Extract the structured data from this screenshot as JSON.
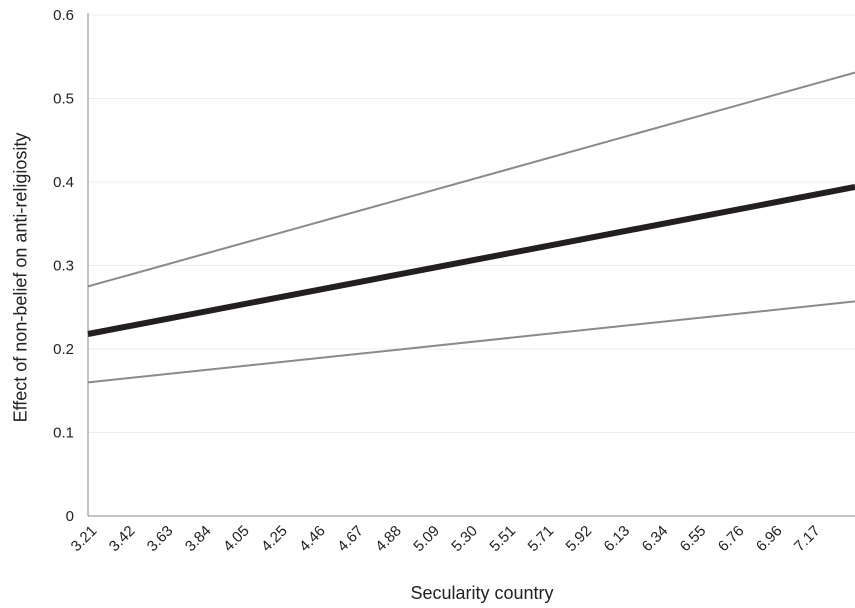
{
  "chart_data": {
    "type": "line",
    "title": "",
    "xlabel": "Secularity country",
    "ylabel": "Effect of non-belief on anti-religiosity",
    "categories": [
      "3.21",
      "3.42",
      "3.63",
      "3.84",
      "4.05",
      "4.25",
      "4.46",
      "4.67",
      "4.88",
      "5.09",
      "5.30",
      "5.51",
      "5.71",
      "5.92",
      "6.13",
      "6.34",
      "6.55",
      "6.76",
      "6.96",
      "7.17"
    ],
    "x_range": [
      3.21,
      7.38
    ],
    "ylim": [
      0,
      0.6
    ],
    "y_ticks": [
      0,
      0.1,
      0.2,
      0.3,
      0.4,
      0.5,
      0.6
    ],
    "y_tick_labels": [
      "0",
      "0.1",
      "0.2",
      "0.3",
      "0.4",
      "0.5",
      "0.6"
    ],
    "grid": true,
    "legend": "none",
    "series": [
      {
        "x": [
          3.21,
          7.38
        ],
        "y": [
          0.275,
          0.531
        ],
        "color": "#8a8a8a",
        "style": "thin"
      },
      {
        "x": [
          3.21,
          7.38
        ],
        "y": [
          0.218,
          0.394
        ],
        "color": "#231f20",
        "style": "thick"
      },
      {
        "x": [
          3.21,
          7.38
        ],
        "y": [
          0.16,
          0.257
        ],
        "color": "#8a8a8a",
        "style": "thin"
      }
    ],
    "colors": {
      "gridline": "#ececec",
      "axis": "#888888",
      "text": "#222222"
    }
  }
}
